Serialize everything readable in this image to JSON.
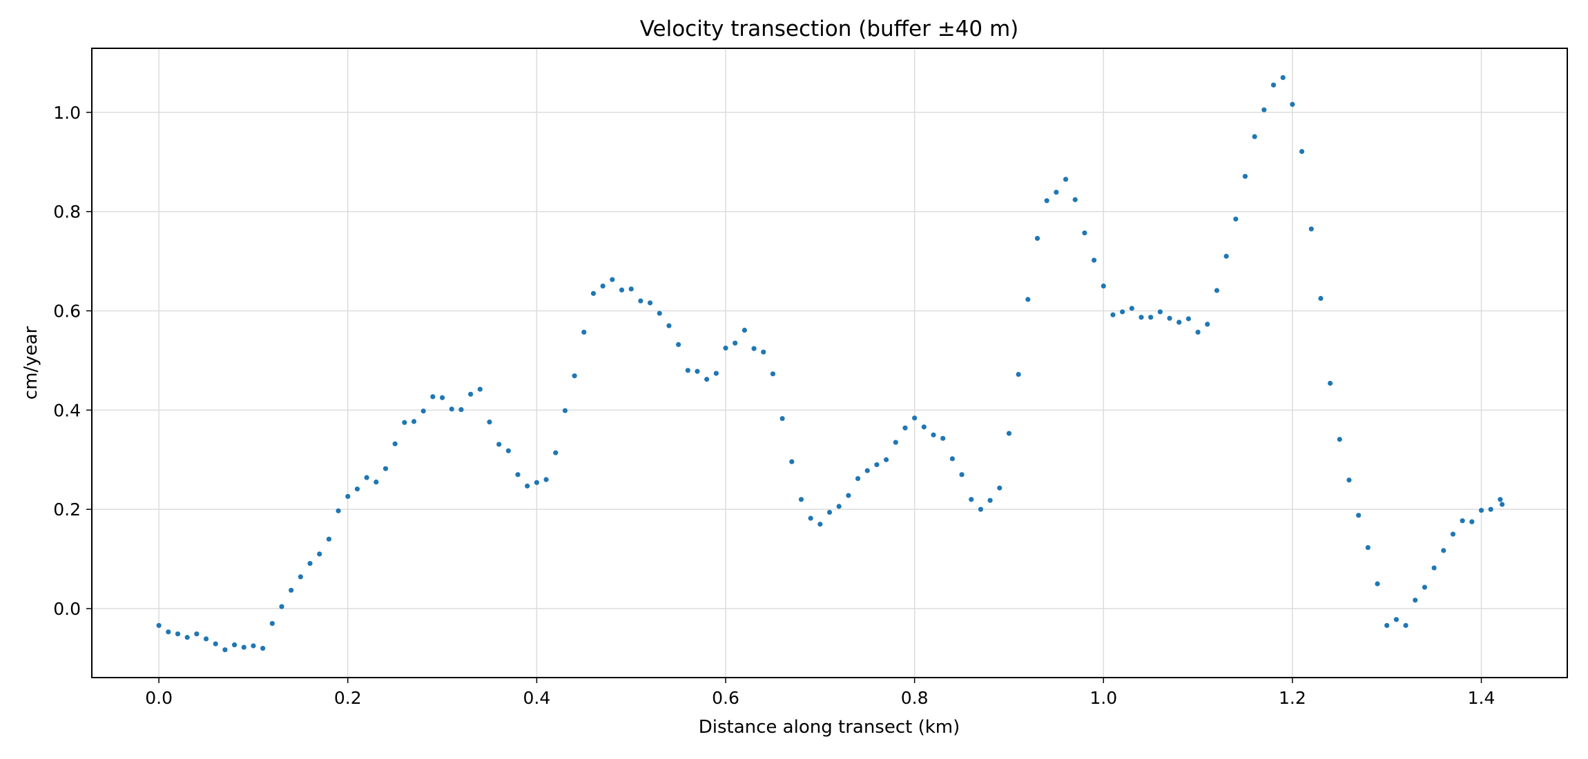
{
  "chart_data": {
    "type": "scatter",
    "title": "Velocity transection  (buffer ±40 m)",
    "xlabel": "Distance along transect (km)",
    "ylabel": "cm/year",
    "xlim": [
      -0.071,
      1.491
    ],
    "ylim": [
      -0.139,
      1.129
    ],
    "xticks": [
      0.0,
      0.2,
      0.4,
      0.6,
      0.8,
      1.0,
      1.2,
      1.4
    ],
    "xtick_labels": [
      "0.0",
      "0.2",
      "0.4",
      "0.6",
      "0.8",
      "1.0",
      "1.2",
      "1.4"
    ],
    "yticks": [
      0.0,
      0.2,
      0.4,
      0.6,
      0.8,
      1.0
    ],
    "ytick_labels": [
      "0.0",
      "0.2",
      "0.4",
      "0.6",
      "0.8",
      "1.0"
    ],
    "grid": true,
    "legend": "none",
    "color": "#1f77b4",
    "x": [
      0.0,
      0.01,
      0.02,
      0.03,
      0.04,
      0.05,
      0.06,
      0.07,
      0.08,
      0.09,
      0.1,
      0.11,
      0.12,
      0.13,
      0.14,
      0.15,
      0.16,
      0.17,
      0.18,
      0.19,
      0.2,
      0.21,
      0.22,
      0.23,
      0.24,
      0.25,
      0.26,
      0.27,
      0.28,
      0.29,
      0.3,
      0.31,
      0.32,
      0.33,
      0.34,
      0.35,
      0.36,
      0.37,
      0.38,
      0.39,
      0.4,
      0.41,
      0.42,
      0.43,
      0.44,
      0.45,
      0.46,
      0.47,
      0.48,
      0.49,
      0.5,
      0.51,
      0.52,
      0.53,
      0.54,
      0.55,
      0.56,
      0.57,
      0.58,
      0.59,
      0.6,
      0.61,
      0.62,
      0.63,
      0.64,
      0.65,
      0.66,
      0.67,
      0.68,
      0.69,
      0.7,
      0.71,
      0.72,
      0.73,
      0.74,
      0.75,
      0.76,
      0.77,
      0.78,
      0.79,
      0.8,
      0.81,
      0.82,
      0.83,
      0.84,
      0.85,
      0.86,
      0.87,
      0.88,
      0.89,
      0.9,
      0.91,
      0.92,
      0.93,
      0.94,
      0.95,
      0.96,
      0.97,
      0.98,
      0.99,
      1.0,
      1.01,
      1.02,
      1.03,
      1.04,
      1.05,
      1.06,
      1.07,
      1.08,
      1.09,
      1.1,
      1.11,
      1.12,
      1.13,
      1.14,
      1.15,
      1.16,
      1.17,
      1.18,
      1.19,
      1.2,
      1.21,
      1.22,
      1.23,
      1.24,
      1.25,
      1.26,
      1.27,
      1.28,
      1.29,
      1.3,
      1.31,
      1.32,
      1.33,
      1.34,
      1.35,
      1.36,
      1.37,
      1.38,
      1.39,
      1.4,
      1.41,
      1.42,
      1.422
    ],
    "y": [
      -0.034,
      -0.047,
      -0.051,
      -0.058,
      -0.051,
      -0.061,
      -0.071,
      -0.083,
      -0.073,
      -0.078,
      -0.075,
      -0.08,
      -0.03,
      0.004,
      0.037,
      0.064,
      0.091,
      0.11,
      0.14,
      0.197,
      0.226,
      0.241,
      0.264,
      0.255,
      0.282,
      0.332,
      0.375,
      0.377,
      0.398,
      0.427,
      0.425,
      0.402,
      0.401,
      0.432,
      0.442,
      0.376,
      0.331,
      0.318,
      0.27,
      0.247,
      0.254,
      0.26,
      0.314,
      0.399,
      0.469,
      0.557,
      0.635,
      0.65,
      0.663,
      0.642,
      0.644,
      0.62,
      0.616,
      0.595,
      0.57,
      0.532,
      0.48,
      0.478,
      0.462,
      0.474,
      0.525,
      0.535,
      0.561,
      0.524,
      0.517,
      0.473,
      0.383,
      0.296,
      0.22,
      0.182,
      0.17,
      0.194,
      0.206,
      0.228,
      0.262,
      0.278,
      0.29,
      0.3,
      0.335,
      0.364,
      0.384,
      0.366,
      0.35,
      0.343,
      0.302,
      0.27,
      0.22,
      0.2,
      0.218,
      0.243,
      0.353,
      0.472,
      0.623,
      0.746,
      0.822,
      0.839,
      0.865,
      0.824,
      0.757,
      0.702,
      0.65,
      0.592,
      0.598,
      0.605,
      0.587,
      0.587,
      0.598,
      0.585,
      0.577,
      0.584,
      0.557,
      0.573,
      0.641,
      0.71,
      0.785,
      0.871,
      0.951,
      1.005,
      1.055,
      1.07,
      1.016,
      0.921,
      0.765,
      0.625,
      0.454,
      0.341,
      0.259,
      0.188,
      0.123,
      0.05,
      -0.034,
      -0.022,
      -0.034,
      0.017,
      0.043,
      0.082,
      0.117,
      0.15,
      0.177,
      0.175,
      0.198,
      0.2,
      0.22,
      0.21
    ]
  }
}
